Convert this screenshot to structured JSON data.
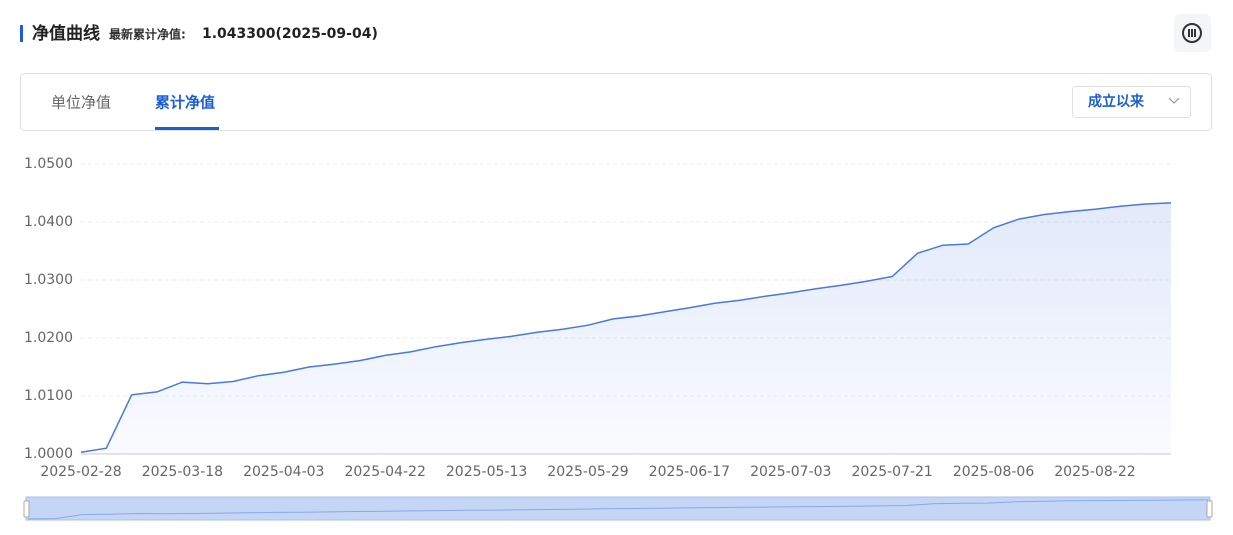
{
  "header": {
    "title": "净值曲线",
    "latest_label": "最新累计净值:",
    "latest_value": "1.043300(2025-09-04)"
  },
  "tabs": [
    "单位净值",
    "累计净值"
  ],
  "dropdown": "成立以来",
  "chart_data": {
    "type": "line",
    "categories": [
      "2025-02-28",
      null,
      null,
      null,
      "2025-03-18",
      null,
      null,
      null,
      "2025-04-03",
      null,
      null,
      null,
      "2025-04-22",
      null,
      null,
      null,
      "2025-05-13",
      null,
      null,
      null,
      "2025-05-29",
      null,
      null,
      null,
      "2025-06-17",
      null,
      null,
      null,
      "2025-07-03",
      null,
      null,
      null,
      "2025-07-21",
      null,
      null,
      null,
      "2025-08-06",
      null,
      null,
      null,
      "2025-08-22",
      null,
      null,
      null
    ],
    "series": [
      {
        "name": "累计净值",
        "color": "#4a78e0",
        "values": [
          1.0003,
          1.001,
          1.0102,
          1.0107,
          1.0124,
          1.0121,
          1.0125,
          1.0135,
          1.0141,
          1.015,
          1.0155,
          1.0161,
          1.017,
          1.0176,
          1.0185,
          1.0192,
          1.0198,
          1.0203,
          1.021,
          1.0215,
          1.0222,
          1.0233,
          1.0238,
          1.0245,
          1.0252,
          1.026,
          1.0265,
          1.0272,
          1.0278,
          1.0285,
          1.0291,
          1.0298,
          1.0306,
          1.0346,
          1.036,
          1.0362,
          1.039,
          1.0405,
          1.0413,
          1.0418,
          1.0422,
          1.0427,
          1.0431,
          1.0433
        ]
      }
    ],
    "ylim": [
      1.0,
      1.05
    ],
    "yticks": [
      {
        "value": 1.0,
        "label": "1.0000"
      },
      {
        "value": 1.01,
        "label": "1.0100"
      },
      {
        "value": 1.02,
        "label": "1.0200"
      },
      {
        "value": 1.03,
        "label": "1.0300"
      },
      {
        "value": 1.04,
        "label": "1.0400"
      },
      {
        "value": 1.05,
        "label": "1.0500"
      }
    ],
    "grid": true
  }
}
